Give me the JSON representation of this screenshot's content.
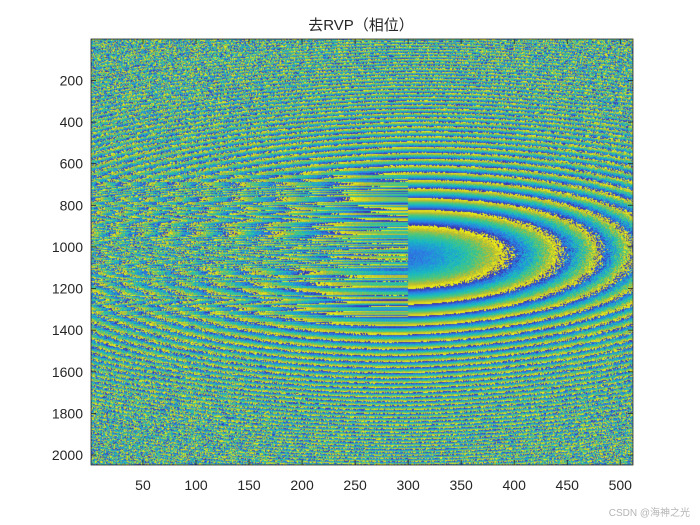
{
  "chart_data": {
    "type": "heatmap",
    "title": "去RVP（相位）",
    "xlabel": "",
    "ylabel": "",
    "xlim": [
      1,
      512
    ],
    "ylim": [
      1,
      2048
    ],
    "y_reversed": true,
    "x_ticks": [
      "50",
      "100",
      "150",
      "200",
      "250",
      "300",
      "350",
      "400",
      "450",
      "500"
    ],
    "y_ticks": [
      "200",
      "400",
      "600",
      "800",
      "1000",
      "1200",
      "1400",
      "1600",
      "1800",
      "2000"
    ],
    "value_range": [
      -3.14159,
      3.14159
    ],
    "colormap": "parula",
    "colors": [
      "#3e26a8",
      "#2c7ce6",
      "#17b8c4",
      "#49c77e",
      "#c2bc2d",
      "#f9fb0e"
    ],
    "features": [
      {
        "kind": "fringe-apex",
        "x": 300,
        "y": 800
      },
      {
        "kind": "fringe-apex",
        "x": 300,
        "y": 1300
      },
      {
        "kind": "center-row",
        "x": 300,
        "y": 1000
      }
    ],
    "grid": false,
    "legend": "none"
  },
  "watermark": "CSDN @海神之光"
}
